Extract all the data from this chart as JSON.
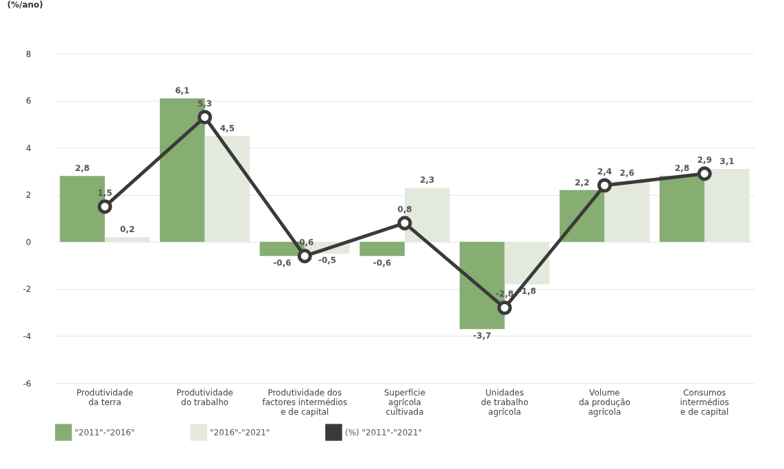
{
  "chart_data": {
    "type": "bar",
    "ylabel": "(%/ano)",
    "categories": [
      "Produtividade\nda terra",
      "Produtividade\ndo trabalho",
      "Produtividade dos\nfactores intermédios\ne de capital",
      "Superfície\nagrícola\ncultivada",
      "Unidades\nde trabalho\nagrícola",
      "Volume\nda produção\nagrícola",
      "Consumos\nintermédios\ne de capital"
    ],
    "series": [
      {
        "name": "\"2011\"-\"2016\"",
        "color": "#86ad72",
        "values": [
          2.8,
          6.1,
          -0.6,
          -0.6,
          -3.7,
          2.2,
          2.8
        ],
        "value_labels": [
          "2,8",
          "6,1",
          "-0,6",
          "-0,6",
          "-3,7",
          "2,2",
          "2,8"
        ]
      },
      {
        "name": "\"2016\"-\"2021\"",
        "color": "#e3eadd",
        "values": [
          0.2,
          4.5,
          -0.5,
          2.3,
          -1.8,
          2.6,
          3.1
        ],
        "value_labels": [
          "0,2",
          "4,5",
          "-0,5",
          "2,3",
          "-1,8",
          "2,6",
          "3,1"
        ]
      },
      {
        "name": "(%) \"2011\"-\"2021\"",
        "type": "line",
        "color": "#3a3a3a",
        "marker": "circle",
        "values": [
          1.5,
          5.3,
          -0.6,
          0.8,
          -2.8,
          2.4,
          2.9
        ],
        "value_labels": [
          "1,5",
          "5,3",
          "-0,6",
          "0,8",
          "-2,8",
          "2,4",
          "2,9"
        ]
      }
    ],
    "ylim": [
      -6,
      8
    ],
    "yticks": [
      -6,
      -4,
      -2,
      0,
      2,
      4,
      6,
      8
    ],
    "grid": "y",
    "legend": "bottom"
  }
}
